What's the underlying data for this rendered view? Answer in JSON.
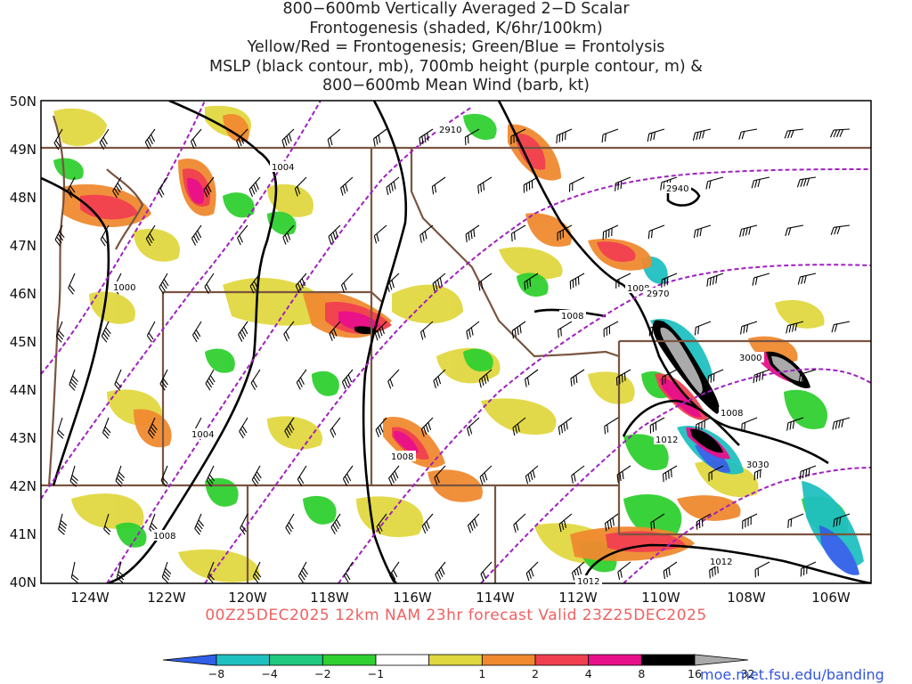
{
  "title_lines": [
    "800−600mb Vertically Averaged 2−D Scalar",
    "Frontogenesis (shaded, K/6hr/100km)",
    "Yellow/Red = Frontogenesis;  Green/Blue = Frontolysis",
    "MSLP (black contour, mb), 700mb height (purple contour, m) &",
    "800−600mb Mean Wind (barb, kt)"
  ],
  "valid_line": "00Z25DEC2025 12km NAM 23hr forecast Valid 23Z25DEC2025",
  "credit": "moe.met.fsu.edu/banding",
  "map": {
    "lat_labels": [
      "50N",
      "49N",
      "48N",
      "47N",
      "46N",
      "45N",
      "44N",
      "43N",
      "42N",
      "41N",
      "40N"
    ],
    "lon_labels": [
      "124W",
      "122W",
      "120W",
      "118W",
      "116W",
      "114W",
      "112W",
      "110W",
      "108W",
      "106W"
    ],
    "mslp_labels": [
      "1004",
      "1000",
      "1008",
      "1008",
      "1004",
      "1008",
      "1008",
      "1012",
      "1008",
      "1012",
      "1012"
    ],
    "height_labels": [
      "2910",
      "2940",
      "2970",
      "3000",
      "3030"
    ],
    "colors": {
      "mslp": "#000000",
      "height": "#a020c0",
      "borders": "#7a5540",
      "frontogenesis_weak": "#e0d840",
      "frontogenesis_mid": "#f08a30",
      "frontogenesis_strong": "#f04050",
      "frontogenesis_very_strong": "#e8108a",
      "frontolysis_weak": "#30d030",
      "frontolysis_strong": "#20c0c0",
      "extreme_high": "#000000",
      "extreme_top": "#aaaaaa"
    }
  },
  "colorbar": {
    "labels": [
      "−8",
      "−4",
      "−2",
      "−1",
      "1",
      "2",
      "4",
      "8",
      "16",
      "32"
    ],
    "segments": [
      {
        "color": "#3060e8"
      },
      {
        "color": "#20c0c0"
      },
      {
        "color": "#20c880"
      },
      {
        "color": "#30d030"
      },
      {
        "color": "#ffffff"
      },
      {
        "color": "#e0d840"
      },
      {
        "color": "#f08a30"
      },
      {
        "color": "#f04050"
      },
      {
        "color": "#e8108a"
      },
      {
        "color": "#000000"
      },
      {
        "color": "#aaaaaa"
      }
    ]
  }
}
